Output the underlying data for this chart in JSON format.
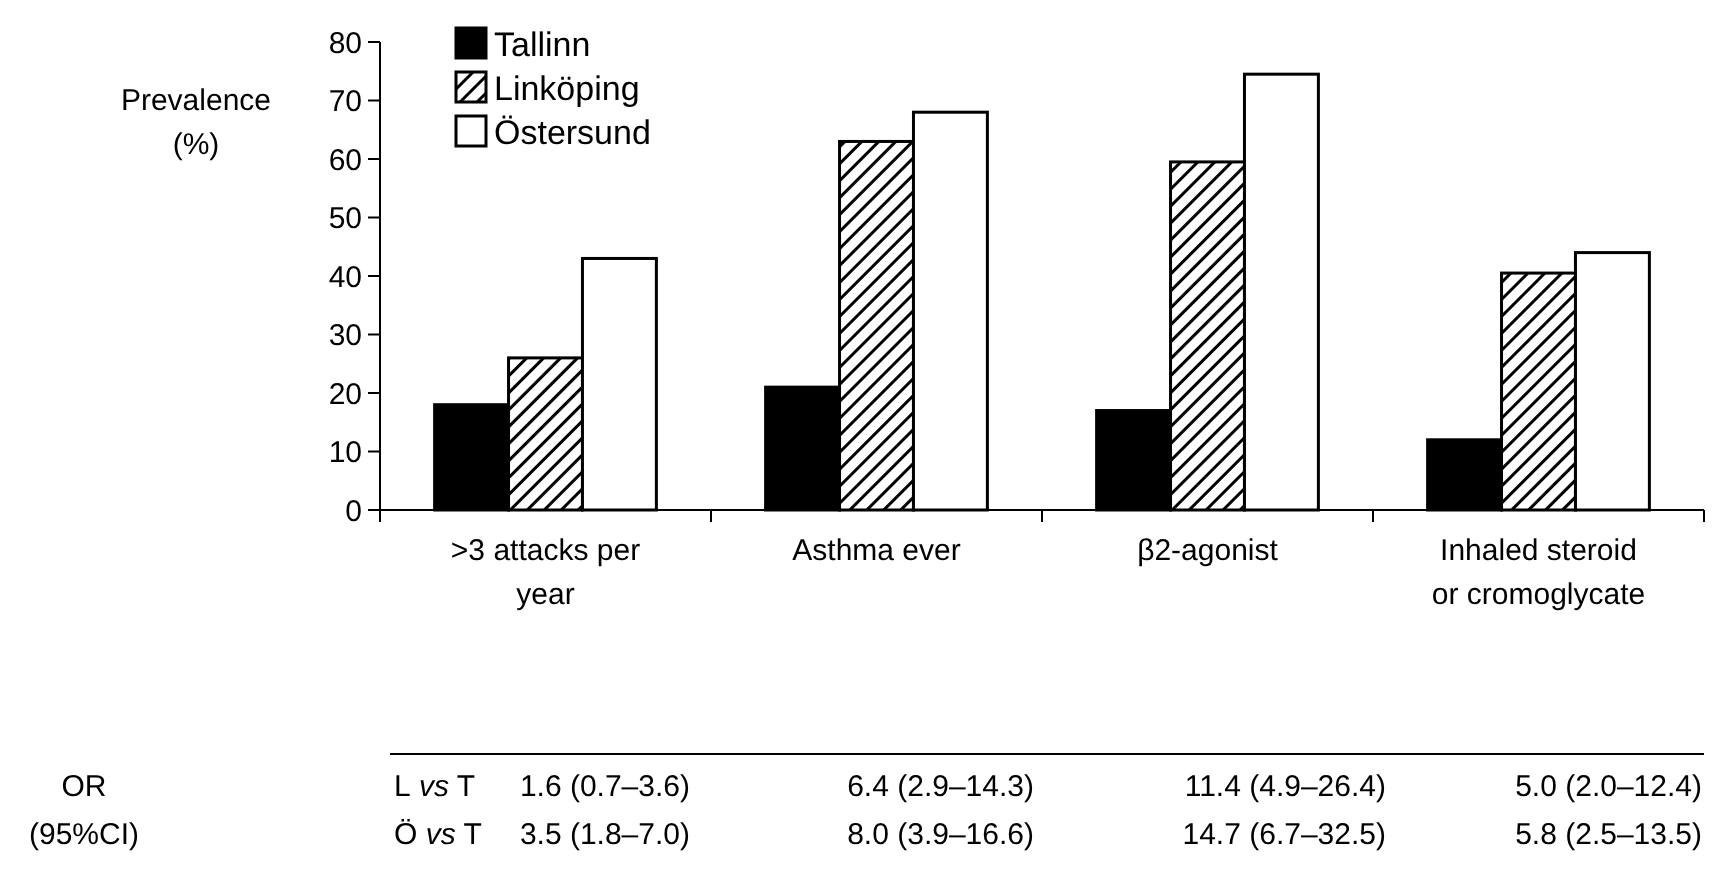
{
  "chart_data": {
    "type": "bar",
    "ylabel": "Prevalence (%)",
    "categories": [
      ">3 attacks per year",
      "Asthma ever",
      "β2-agonist",
      "Inhaled steroid or cromoglycate"
    ],
    "series": [
      {
        "name": "Tallinn",
        "color": "#000000",
        "values": [
          18,
          21,
          17,
          12
        ]
      },
      {
        "name": "Linköping",
        "color": "#000000",
        "values": [
          26,
          63,
          59.5,
          40.5
        ]
      },
      {
        "name": "Östersund",
        "color": "#ffffff",
        "values": [
          43,
          68,
          74.5,
          44
        ]
      }
    ],
    "ylim": [
      0,
      80
    ],
    "yticks": [
      0,
      10,
      20,
      30,
      40,
      50,
      60,
      70,
      80
    ],
    "grid": false,
    "legend": "top left",
    "annotations": [
      "OR (95%CI)",
      "L vs T",
      "1.6 (0.7–3.6)",
      "6.4 (2.9–14.3)",
      "11.4 (4.9–26.4)",
      "5.0 (2.0–12.4)",
      "Ö vs T",
      "3.5 (1.8–7.0)",
      "8.0 (3.9–16.6)",
      "14.7 (6.7–32.5)",
      "5.8 (2.5–13.5)"
    ]
  }
}
